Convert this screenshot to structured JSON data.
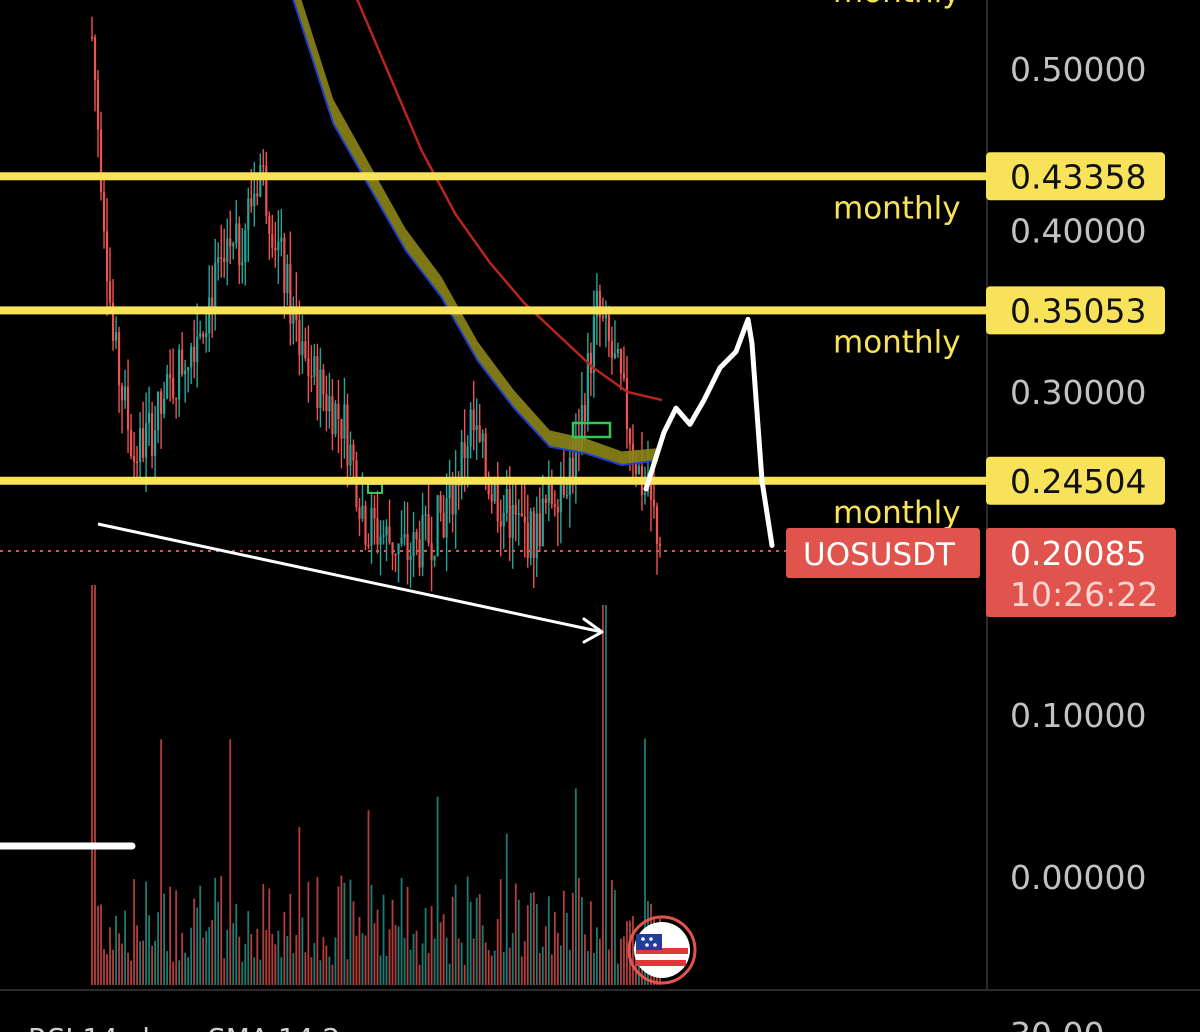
{
  "chart_data": {
    "type": "candlestick",
    "symbol": "UOSUSDT",
    "price_axis": {
      "ticks": [
        {
          "value": 0.5,
          "label": "0.50000"
        },
        {
          "value": 0.4,
          "label": "0.40000"
        },
        {
          "value": 0.3,
          "label": "0.30000"
        },
        {
          "value": 0.1,
          "label": "0.10000"
        },
        {
          "value": 0.0,
          "label": "0.00000"
        }
      ],
      "bottom_partial_label": "30.00"
    },
    "levels": [
      {
        "value": 0.43358,
        "label": "0.43358",
        "annotation": "monthly"
      },
      {
        "value": 0.35053,
        "label": "0.35053",
        "annotation": "monthly"
      },
      {
        "value": 0.24504,
        "label": "0.24504",
        "annotation": "monthly"
      }
    ],
    "top_partial_annotation": "monthly",
    "current_price": {
      "symbol": "UOSUSDT",
      "value": "0.20085",
      "countdown": "10:26:22"
    },
    "rsi_legend_partial": "RSI 14 close SMA 14 2",
    "colors": {
      "level": "#f7e25a",
      "up": "#26a69a",
      "down": "#ef5350",
      "ribbon": "#8c8418",
      "slow_ma": "#b8251f",
      "price_tag": "#e0544d",
      "drawing": "#ffffff",
      "background": "#000000"
    },
    "price_series": [
      0.52,
      0.33,
      0.26,
      0.28,
      0.31,
      0.34,
      0.37,
      0.39,
      0.44,
      0.38,
      0.32,
      0.3,
      0.28,
      0.22,
      0.21,
      0.2,
      0.21,
      0.23,
      0.28,
      0.24,
      0.22,
      0.21,
      0.24,
      0.26,
      0.35,
      0.31,
      0.25,
      0.21
    ],
    "ribbon_series": [
      0.68,
      0.62,
      0.55,
      0.48,
      0.44,
      0.4,
      0.37,
      0.33,
      0.3,
      0.275,
      0.27,
      0.262,
      0.264
    ],
    "slow_ma_series": [
      0.6,
      0.55,
      0.5,
      0.45,
      0.41,
      0.38,
      0.355,
      0.335,
      0.315,
      0.3,
      0.295
    ],
    "projection_series": [
      0.24,
      0.275,
      0.29,
      0.28,
      0.295,
      0.315,
      0.325,
      0.345,
      0.33,
      0.245,
      0.205
    ],
    "drawings": [
      "descending-arrow",
      "projected-path",
      "horizontal-stub"
    ]
  }
}
